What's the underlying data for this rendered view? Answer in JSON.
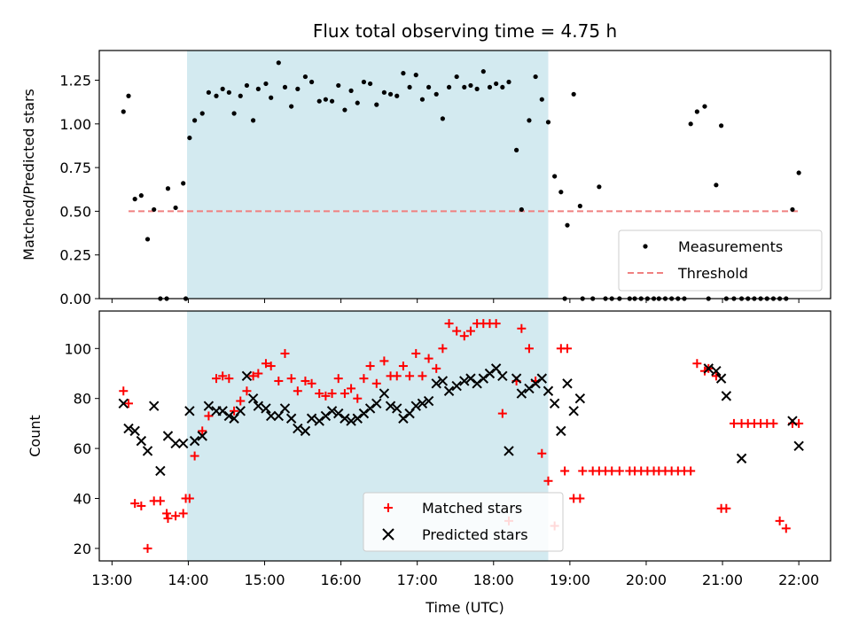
{
  "chart_data": [
    {
      "type": "scatter",
      "title": "Flux total observing time = 4.75 h",
      "ylabel": "Matched/Predicted stars",
      "xlabel": "",
      "xlim": [
        "12:50",
        "22:25"
      ],
      "ylim": [
        0,
        1.42
      ],
      "yticks": [
        0.0,
        0.25,
        0.5,
        0.75,
        1.0,
        1.25
      ],
      "ytick_labels": [
        "0.00",
        "0.25",
        "0.50",
        "0.75",
        "1.00",
        "1.25"
      ],
      "xtick_labels_shown": false,
      "shaded_region": {
        "x_start": "13:59",
        "x_end": "18:43",
        "color": "#d3eaf0"
      },
      "legend": {
        "placement": "lower-right",
        "entries": [
          "Measurements",
          "Threshold"
        ]
      },
      "threshold": {
        "name": "Threshold",
        "x": [
          "13:13",
          "22:00"
        ],
        "y": 0.5,
        "color": "#f08080",
        "style": "dashed"
      },
      "series": [
        {
          "name": "Measurements",
          "color": "#000000",
          "marker": "dot",
          "x": [
            "13:09",
            "13:13",
            "13:18",
            "13:23",
            "13:28",
            "13:33",
            "13:38",
            "13:44",
            "13:50",
            "13:56",
            "14:01",
            "14:05",
            "14:11",
            "14:16",
            "14:22",
            "14:27",
            "14:32",
            "14:36",
            "14:41",
            "14:46",
            "14:51",
            "14:55",
            "15:01",
            "15:05",
            "15:11",
            "15:16",
            "15:21",
            "15:26",
            "15:32",
            "15:37",
            "15:43",
            "15:48",
            "15:53",
            "15:58",
            "16:03",
            "16:08",
            "16:13",
            "16:18",
            "16:23",
            "16:28",
            "16:34",
            "16:39",
            "16:44",
            "16:49",
            "16:54",
            "16:59",
            "17:04",
            "17:09",
            "17:15",
            "17:20",
            "17:25",
            "17:31",
            "17:37",
            "17:42",
            "17:47",
            "17:52",
            "17:57",
            "18:02",
            "18:07",
            "18:12",
            "18:18",
            "18:22",
            "18:28",
            "18:33",
            "18:38",
            "18:43",
            "18:48",
            "18:53",
            "18:58",
            "19:03",
            "19:08",
            "13:43",
            "13:58",
            "18:56",
            "19:10",
            "19:18",
            "19:23",
            "19:28",
            "19:33",
            "19:39",
            "19:47",
            "19:51",
            "19:56",
            "20:01",
            "20:06",
            "20:10",
            "20:15",
            "20:20",
            "20:25",
            "20:30",
            "20:35",
            "20:40",
            "20:46",
            "20:49",
            "20:55",
            "20:59",
            "21:03",
            "21:09",
            "21:15",
            "21:20",
            "21:25",
            "21:30",
            "21:35",
            "21:40",
            "21:45",
            "21:50",
            "21:55",
            "22:00"
          ],
          "y": [
            1.07,
            1.16,
            0.57,
            0.59,
            0.34,
            0.51,
            0.0,
            0.63,
            0.52,
            0.66,
            0.92,
            1.02,
            1.06,
            1.18,
            1.16,
            1.2,
            1.18,
            1.06,
            1.16,
            1.22,
            1.02,
            1.2,
            1.23,
            1.15,
            1.35,
            1.21,
            1.1,
            1.2,
            1.27,
            1.24,
            1.13,
            1.14,
            1.13,
            1.22,
            1.08,
            1.19,
            1.12,
            1.24,
            1.23,
            1.11,
            1.18,
            1.17,
            1.16,
            1.29,
            1.21,
            1.28,
            1.14,
            1.21,
            1.17,
            1.03,
            1.21,
            1.27,
            1.21,
            1.22,
            1.2,
            1.3,
            1.21,
            1.23,
            1.21,
            1.24,
            0.85,
            0.51,
            1.02,
            1.27,
            1.14,
            1.01,
            0.7,
            0.61,
            0.42,
            1.17,
            0.53,
            0.0,
            0.0,
            0.0,
            0.0,
            0.0,
            0.64,
            0.0,
            0.0,
            0.0,
            0.0,
            0.0,
            0.0,
            0.0,
            0.0,
            0.0,
            0.0,
            0.0,
            0.0,
            0.0,
            1.0,
            1.07,
            1.1,
            0.0,
            0.65,
            0.99,
            0.0,
            0.0,
            0.0,
            0.0,
            0.0,
            0.0,
            0.0,
            0.0,
            0.0,
            0.0,
            0.51,
            0.72
          ]
        }
      ]
    },
    {
      "type": "scatter",
      "title": "",
      "ylabel": "Count",
      "xlabel": "Time (UTC)",
      "xlim": [
        "12:50",
        "22:25"
      ],
      "ylim": [
        15,
        115
      ],
      "yticks": [
        20,
        40,
        60,
        80,
        100
      ],
      "ytick_labels": [
        "20",
        "40",
        "60",
        "80",
        "100"
      ],
      "xticks": [
        "13:00",
        "14:00",
        "15:00",
        "16:00",
        "17:00",
        "18:00",
        "19:00",
        "20:00",
        "21:00",
        "22:00"
      ],
      "xtick_labels": [
        "13:00",
        "14:00",
        "15:00",
        "16:00",
        "17:00",
        "18:00",
        "19:00",
        "20:00",
        "21:00",
        "22:00"
      ],
      "shaded_region": {
        "x_start": "13:59",
        "x_end": "18:43",
        "color": "#d3eaf0"
      },
      "legend": {
        "placement": "lower-center",
        "entries": [
          "Matched stars",
          "Predicted stars"
        ]
      },
      "series": [
        {
          "name": "Matched stars",
          "color": "#ff0000",
          "marker": "plus",
          "x": [
            "13:09",
            "13:13",
            "13:18",
            "13:23",
            "13:28",
            "13:33",
            "13:38",
            "13:44",
            "13:50",
            "13:56",
            "14:01",
            "14:05",
            "14:11",
            "14:16",
            "14:22",
            "14:27",
            "14:32",
            "14:36",
            "14:41",
            "14:46",
            "14:51",
            "14:55",
            "15:01",
            "15:05",
            "15:11",
            "15:16",
            "15:21",
            "15:26",
            "15:32",
            "15:37",
            "15:43",
            "15:48",
            "15:53",
            "15:58",
            "16:03",
            "16:08",
            "16:13",
            "16:18",
            "16:23",
            "16:28",
            "16:34",
            "16:39",
            "16:44",
            "16:49",
            "16:54",
            "16:59",
            "17:04",
            "17:09",
            "17:15",
            "17:20",
            "17:25",
            "17:31",
            "17:37",
            "17:42",
            "17:47",
            "17:52",
            "17:57",
            "18:02",
            "18:07",
            "18:12",
            "18:18",
            "18:22",
            "18:28",
            "18:33",
            "18:38",
            "18:43",
            "18:48",
            "18:53",
            "18:58",
            "19:03",
            "19:08",
            "13:43",
            "13:58",
            "18:56",
            "19:10",
            "19:18",
            "19:23",
            "19:28",
            "19:33",
            "19:39",
            "19:47",
            "19:51",
            "19:56",
            "20:01",
            "20:06",
            "20:10",
            "20:15",
            "20:20",
            "20:25",
            "20:30",
            "20:35",
            "20:40",
            "20:46",
            "20:49",
            "20:55",
            "20:59",
            "21:03",
            "21:09",
            "21:15",
            "21:20",
            "21:25",
            "21:30",
            "21:35",
            "21:40",
            "21:45",
            "21:50",
            "21:55",
            "22:00"
          ],
          "y": [
            83,
            78,
            38,
            37,
            20,
            39,
            39,
            32,
            33,
            34,
            40,
            57,
            67,
            73,
            88,
            89,
            88,
            75,
            79,
            83,
            89,
            90,
            94,
            93,
            87,
            98,
            88,
            83,
            87,
            86,
            82,
            81,
            82,
            88,
            82,
            84,
            80,
            88,
            93,
            86,
            95,
            89,
            89,
            93,
            89,
            98,
            89,
            96,
            92,
            100,
            110,
            107,
            105,
            107,
            110,
            110,
            110,
            110,
            74,
            31,
            87,
            108,
            100,
            87,
            58,
            47,
            29,
            100,
            100,
            40,
            40,
            34,
            40,
            51,
            51,
            51,
            51,
            51,
            51,
            51,
            51,
            51,
            51,
            51,
            51,
            51,
            51,
            51,
            51,
            51,
            51,
            94,
            91,
            92,
            89,
            36,
            36,
            70,
            70,
            70,
            70,
            70,
            70,
            70,
            31,
            28,
            70,
            70
          ]
        },
        {
          "name": "Predicted stars",
          "color": "#000000",
          "marker": "cross",
          "x": [
            "13:09",
            "13:13",
            "13:18",
            "13:23",
            "13:28",
            "13:33",
            "13:38",
            "13:44",
            "13:50",
            "13:56",
            "14:01",
            "14:05",
            "14:11",
            "14:16",
            "14:22",
            "14:27",
            "14:32",
            "14:36",
            "14:41",
            "14:46",
            "14:51",
            "14:55",
            "15:01",
            "15:05",
            "15:11",
            "15:16",
            "15:21",
            "15:26",
            "15:32",
            "15:37",
            "15:43",
            "15:48",
            "15:53",
            "15:58",
            "16:03",
            "16:08",
            "16:13",
            "16:18",
            "16:23",
            "16:28",
            "16:34",
            "16:39",
            "16:44",
            "16:49",
            "16:54",
            "16:59",
            "17:04",
            "17:09",
            "17:15",
            "17:20",
            "17:25",
            "17:31",
            "17:37",
            "17:42",
            "17:47",
            "17:52",
            "17:57",
            "18:02",
            "18:07",
            "18:12",
            "18:18",
            "18:22",
            "18:28",
            "18:33",
            "18:38",
            "18:43",
            "18:48",
            "18:53",
            "18:58",
            "19:03",
            "19:08",
            "20:49",
            "20:55",
            "20:59",
            "21:03",
            "21:15",
            "21:55",
            "22:00"
          ],
          "y": [
            78,
            68,
            67,
            63,
            59,
            77,
            51,
            65,
            62,
            62,
            75,
            63,
            65,
            77,
            75,
            75,
            73,
            72,
            75,
            89,
            80,
            77,
            76,
            73,
            73,
            76,
            72,
            68,
            67,
            72,
            71,
            73,
            75,
            74,
            72,
            71,
            72,
            74,
            76,
            78,
            82,
            77,
            76,
            72,
            74,
            77,
            78,
            79,
            86,
            87,
            83,
            85,
            87,
            88,
            86,
            88,
            90,
            92,
            89,
            59,
            88,
            82,
            84,
            86,
            88,
            83,
            78,
            67,
            86,
            75,
            80,
            92,
            91,
            88,
            81,
            56,
            71,
            61
          ]
        }
      ]
    }
  ]
}
